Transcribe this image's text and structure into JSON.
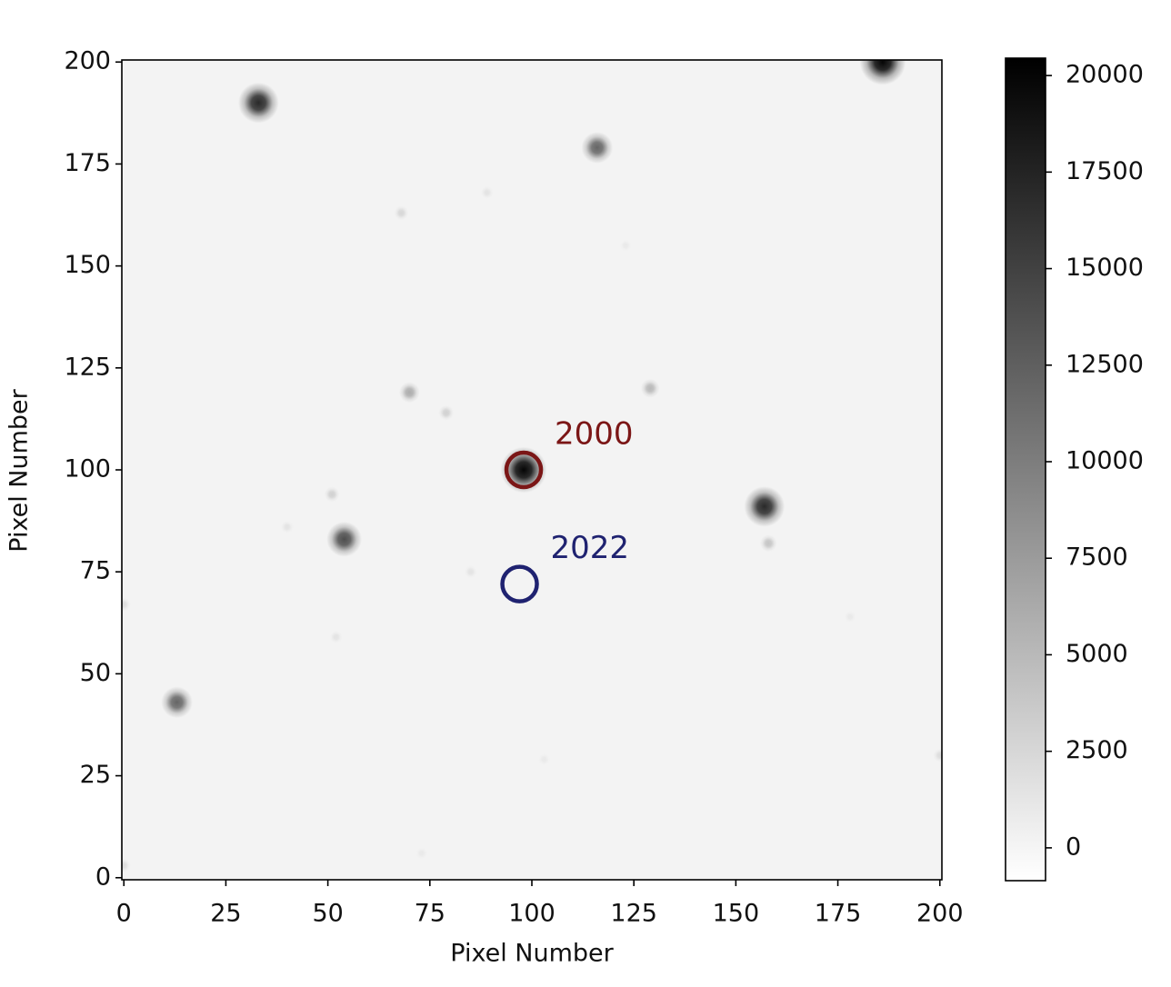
{
  "chart_data": {
    "type": "image",
    "xlabel": "Pixel Number",
    "ylabel": "Pixel Number",
    "xlim": [
      -0.5,
      200.5
    ],
    "ylim": [
      -0.5,
      200.5
    ],
    "xticks": [
      0,
      25,
      50,
      75,
      100,
      125,
      150,
      175,
      200
    ],
    "yticks": [
      0,
      25,
      50,
      75,
      100,
      125,
      150,
      175,
      200
    ],
    "colormap": "gray_r",
    "colorbar": {
      "clim": [
        -850,
        20450
      ],
      "ticks": [
        0,
        2500,
        5000,
        7500,
        10000,
        12500,
        15000,
        17500,
        20000
      ]
    },
    "sources": {
      "x": [
        33,
        116,
        186,
        98,
        157,
        54,
        13,
        70,
        129,
        79,
        51,
        158,
        68,
        89,
        40,
        52,
        85,
        0,
        200,
        0,
        178,
        103,
        123,
        73
      ],
      "y": [
        190,
        179,
        200,
        100,
        91,
        83,
        43,
        119,
        120,
        114,
        94,
        82,
        163,
        168,
        86,
        59,
        75,
        67,
        30,
        3,
        64,
        29,
        155,
        6
      ],
      "peak": [
        17000,
        12000,
        20000,
        20000,
        17000,
        14000,
        12000,
        6000,
        5000,
        3000,
        3000,
        4000,
        2500,
        1500,
        1500,
        1500,
        1500,
        2000,
        2000,
        2000,
        1000,
        1000,
        1000,
        1000
      ]
    },
    "markers": [
      {
        "label": "2000",
        "x": 98,
        "y": 100,
        "color": "#7b1616"
      },
      {
        "label": "2022",
        "x": 97,
        "y": 72,
        "color": "#1f2270"
      }
    ]
  }
}
